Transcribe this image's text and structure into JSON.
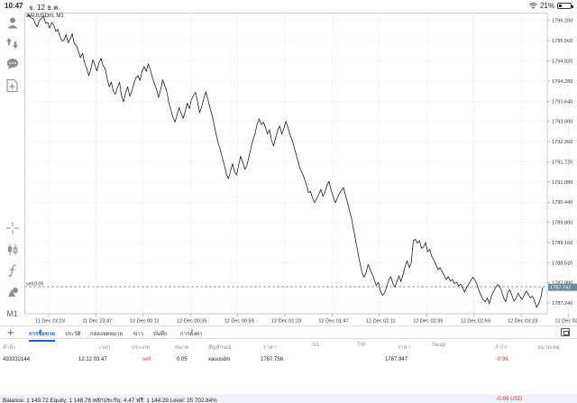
{
  "status_bar": {
    "time": "10:47",
    "date": "จ. 12 ธ.ค.",
    "battery_text": "21%",
    "battery_level": 0.21
  },
  "chart": {
    "symbol_label": "XAUUSDm, M1",
    "line_color": "#111111",
    "level_line_color": "#7d9aa6",
    "sell_marker_label": "sell 0.05",
    "current_price_label": "1787.747",
    "price_tag_color": "#6b8a96",
    "y_ticks": [
      "1796.200",
      "1795.560",
      "1794.920",
      "1794.280",
      "1793.640",
      "1793.000",
      "1792.360",
      "1791.720",
      "1791.080",
      "1790.440",
      "1789.800",
      "1789.160",
      "1788.520",
      "1787.880",
      "1787.240"
    ],
    "x_ticks": [
      "11 Dec 23:23",
      "11 Dec 23:47",
      "12 Dec 00:11",
      "12 Dec 00:35",
      "12 Dec 00:59",
      "12 Dec 01:23",
      "12 Dec 01:47",
      "12 Dec 02:11",
      "12 Dec 02:35",
      "12 Dec 02:59",
      "12 Dec 03:23",
      "12 Dec 03:47"
    ]
  },
  "chart_data": {
    "type": "line",
    "title": "XAUUSDm, M1",
    "xlabel": "",
    "ylabel": "",
    "ylim": [
      1786.9,
      1796.45
    ],
    "level_line": 1787.756,
    "level_label": "sell 0.05",
    "series": [
      {
        "values": [
          1796.32,
          1796.38,
          1796.28,
          1796.26,
          1796.1,
          1796.0,
          1796.2,
          1796.26,
          1796.34,
          1796.12,
          1796.14,
          1795.96,
          1796.14,
          1796.05,
          1795.85,
          1795.92,
          1795.7,
          1795.55,
          1795.58,
          1795.75,
          1795.5,
          1795.62,
          1795.78,
          1795.46,
          1795.42,
          1795.22,
          1795.02,
          1795.16,
          1794.86,
          1794.7,
          1794.45,
          1794.64,
          1794.95,
          1794.8,
          1794.6,
          1794.86,
          1795.0,
          1794.76,
          1794.68,
          1794.36,
          1794.1,
          1794.25,
          1793.95,
          1793.86,
          1794.08,
          1794.24,
          1793.8,
          1793.62,
          1793.92,
          1794.1,
          1793.8,
          1793.95,
          1794.2,
          1794.38,
          1794.45,
          1794.3,
          1794.6,
          1794.74,
          1794.58,
          1794.82,
          1794.64,
          1794.4,
          1794.2,
          1794.02,
          1793.76,
          1794.0,
          1794.32,
          1794.14,
          1793.95,
          1793.6,
          1793.36,
          1793.14,
          1792.98,
          1793.2,
          1793.44,
          1793.26,
          1793.1,
          1793.32,
          1793.58,
          1793.4,
          1793.7,
          1793.82,
          1793.92,
          1793.62,
          1793.28,
          1793.46,
          1793.72,
          1793.94,
          1793.7,
          1793.44,
          1793.2,
          1792.92,
          1792.6,
          1792.32,
          1792.12,
          1791.86,
          1791.62,
          1791.34,
          1791.18,
          1791.42,
          1791.66,
          1791.4,
          1791.3,
          1791.62,
          1791.9,
          1791.7,
          1791.48,
          1791.6,
          1791.88,
          1792.16,
          1792.42,
          1792.62,
          1792.92,
          1793.08,
          1792.9,
          1792.98,
          1792.82,
          1792.6,
          1792.74,
          1792.4,
          1792.22,
          1792.48,
          1792.72,
          1792.86,
          1792.6,
          1792.78,
          1793.0,
          1792.8,
          1792.58,
          1792.42,
          1792.18,
          1791.95,
          1791.7,
          1791.48,
          1791.36,
          1791.18,
          1790.98,
          1790.74,
          1790.78,
          1790.56,
          1790.42,
          1790.56,
          1790.68,
          1790.84,
          1790.62,
          1790.76,
          1790.98,
          1791.1,
          1790.82,
          1790.62,
          1790.42,
          1790.56,
          1790.72,
          1790.8,
          1790.9,
          1790.66,
          1790.42,
          1790.16,
          1789.9,
          1789.56,
          1789.2,
          1788.86,
          1788.52,
          1788.22,
          1788.06,
          1788.2,
          1788.46,
          1788.3,
          1788.16,
          1787.98,
          1787.8,
          1787.9,
          1787.62,
          1787.48,
          1787.56,
          1787.74,
          1787.96,
          1788.08,
          1787.88,
          1787.74,
          1787.92,
          1788.1,
          1787.92,
          1788.14,
          1788.4,
          1788.58,
          1788.36,
          1788.52,
          1789.22,
          1789.26,
          1789.14,
          1789.22,
          1788.98,
          1789.02,
          1789.16,
          1788.86,
          1788.94,
          1788.72,
          1788.6,
          1788.46,
          1788.3,
          1788.36,
          1788.24,
          1788.12,
          1787.98,
          1788.08,
          1787.94,
          1787.98,
          1787.86,
          1787.9,
          1787.78,
          1787.84,
          1787.72,
          1787.58,
          1787.74,
          1787.84,
          1787.96,
          1788.06,
          1787.96,
          1787.84,
          1787.62,
          1787.48,
          1787.34,
          1787.28,
          1787.4,
          1787.22,
          1787.46,
          1787.6,
          1787.72,
          1787.82,
          1787.78,
          1787.62,
          1787.4,
          1787.28,
          1787.58,
          1787.66,
          1787.48,
          1787.3,
          1787.38,
          1787.55,
          1787.44,
          1787.36,
          1787.5,
          1787.62,
          1787.52,
          1787.4,
          1787.46,
          1787.3,
          1787.1,
          1787.22,
          1787.4,
          1787.74
        ]
      }
    ]
  },
  "toolbar": {
    "timeframe_label": "M1"
  },
  "tabs": {
    "add_label": "+",
    "items": [
      {
        "label": "การซื้อขาย",
        "active": true
      },
      {
        "label": "ประวัติ",
        "active": false
      },
      {
        "label": "กล่องจดหมาย",
        "active": false
      },
      {
        "label": "ข่าว",
        "active": false
      },
      {
        "label": "บันทึก",
        "active": false
      },
      {
        "label": "การตั้งค่า",
        "active": false
      }
    ]
  },
  "positions": {
    "headers": {
      "ticket": "คำสั่ง",
      "time": "เวลา",
      "type": "ประเภท",
      "volume": "ขนาด",
      "symbol": "สัญลักษณ์",
      "open_price": "ราคา",
      "sl": "S/L",
      "tp": "T/P",
      "current_price": "ราคา",
      "swap": "Swap",
      "profit": "กำไร",
      "comment": "หมายเหตุ"
    },
    "rows": [
      {
        "ticket": "493332144",
        "time": "12.12 03:47",
        "type": "sell",
        "volume": "0.05",
        "symbol": "xauusdm",
        "open_price": "1787.756",
        "current_price": "1787.947",
        "profit": "-0.96"
      }
    ]
  },
  "balance": {
    "summary": "Balance: 1 149.72 Equity: 1 148.76 หลักประกัน: 4.47 ฟรี: 1 144.29 Level: 25 702.84%",
    "profit": "-0.96  USD"
  }
}
